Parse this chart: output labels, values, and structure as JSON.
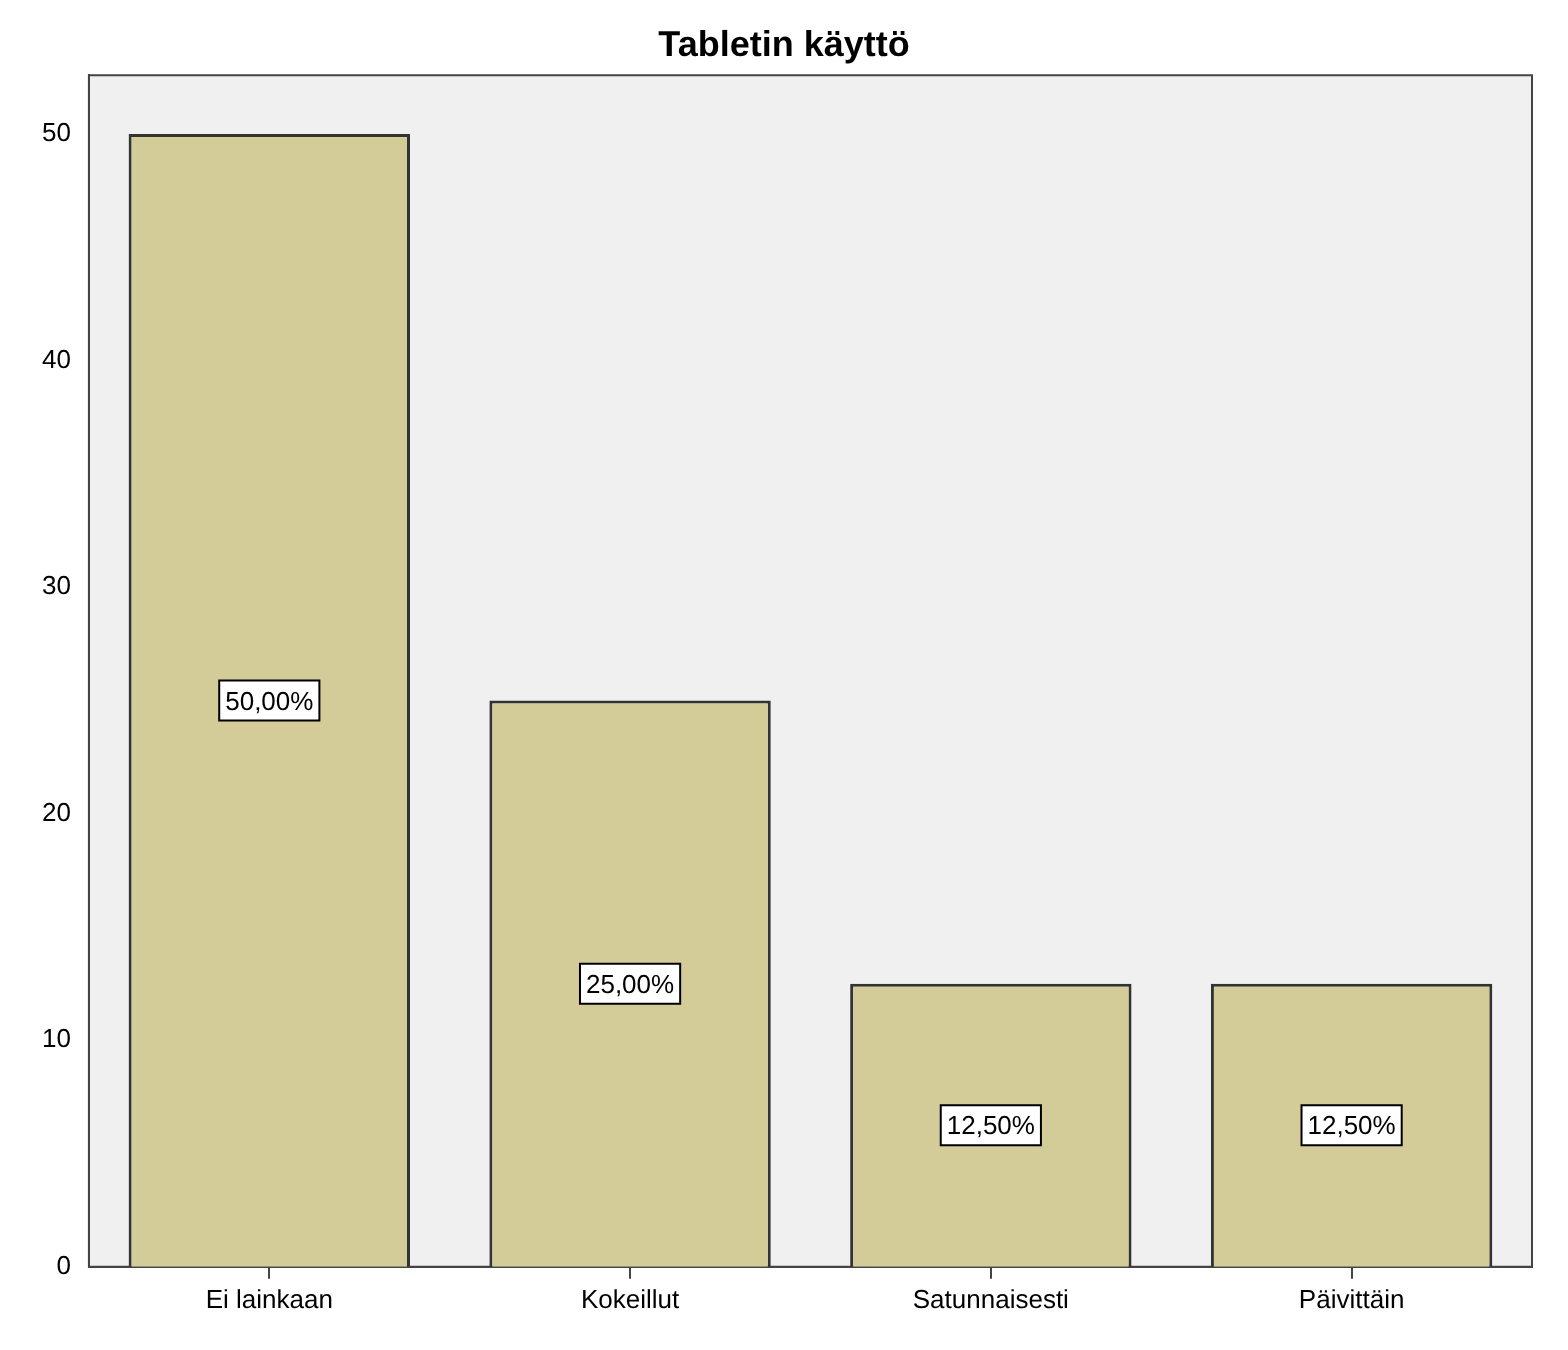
{
  "chart_data": {
    "type": "bar",
    "title": "Tabletin käyttö",
    "categories": [
      "Ei lainkaan",
      "Kokeillut",
      "Satunnaisesti",
      "Päivittäin"
    ],
    "values": [
      50,
      25,
      12.5,
      12.5
    ],
    "value_labels": [
      "50,00%",
      "25,00%",
      "12,50%",
      "12,50%"
    ],
    "color": "#d3cb98",
    "ylim": [
      0,
      52.6
    ],
    "yticks": [
      0,
      10,
      20,
      30,
      40,
      50
    ],
    "grid": false,
    "legend": false
  }
}
